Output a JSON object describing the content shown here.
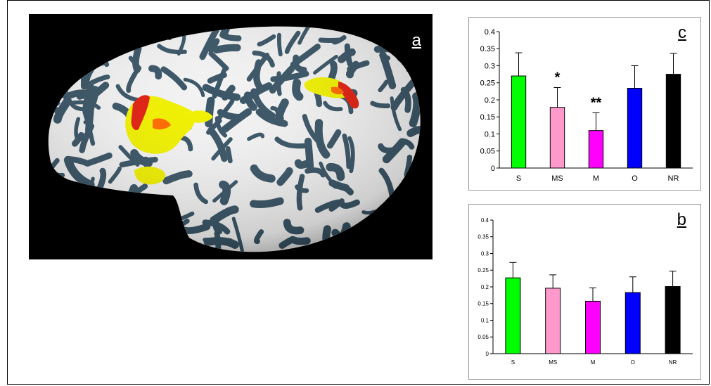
{
  "colors": {
    "S": "#00ff00",
    "MS": "#ff99cc",
    "M": "#ff00ff",
    "O": "#0000ff",
    "NR": "#000000",
    "brain_background": "#000000",
    "sulci": "#3a5566",
    "gyri": "#f2f2f2",
    "activation_yellow": "#f0f000",
    "activation_red": "#e02010"
  },
  "brain_panel": {
    "label": "a"
  },
  "chart_data": [
    {
      "id": "c",
      "type": "bar",
      "label": "c",
      "categories": [
        "S",
        "MS",
        "M",
        "O",
        "NR"
      ],
      "values": [
        0.27,
        0.178,
        0.11,
        0.234,
        0.275
      ],
      "errors": [
        0.068,
        0.058,
        0.052,
        0.066,
        0.061
      ],
      "annotations": [
        "",
        "*",
        "**",
        "",
        ""
      ],
      "ylim": [
        0,
        0.4
      ],
      "yticks": [
        "0",
        "0.05",
        "0.1",
        "0.15",
        "0.2",
        "0.25",
        "0.3",
        "0.35",
        "0.4"
      ],
      "title": "",
      "xlabel": "",
      "ylabel": ""
    },
    {
      "id": "b",
      "type": "bar",
      "label": "b",
      "categories": [
        "S",
        "MS",
        "M",
        "O",
        "NR"
      ],
      "values": [
        0.227,
        0.196,
        0.157,
        0.183,
        0.201
      ],
      "errors": [
        0.046,
        0.04,
        0.04,
        0.047,
        0.046
      ],
      "annotations": [
        "",
        "",
        "",
        "",
        ""
      ],
      "ylim": [
        0,
        0.4
      ],
      "yticks": [
        "0",
        "0.05",
        "0.1",
        "0.15",
        "0.2",
        "0.25",
        "0.3",
        "0.35",
        "0.4"
      ],
      "title": "",
      "xlabel": "",
      "ylabel": ""
    }
  ]
}
